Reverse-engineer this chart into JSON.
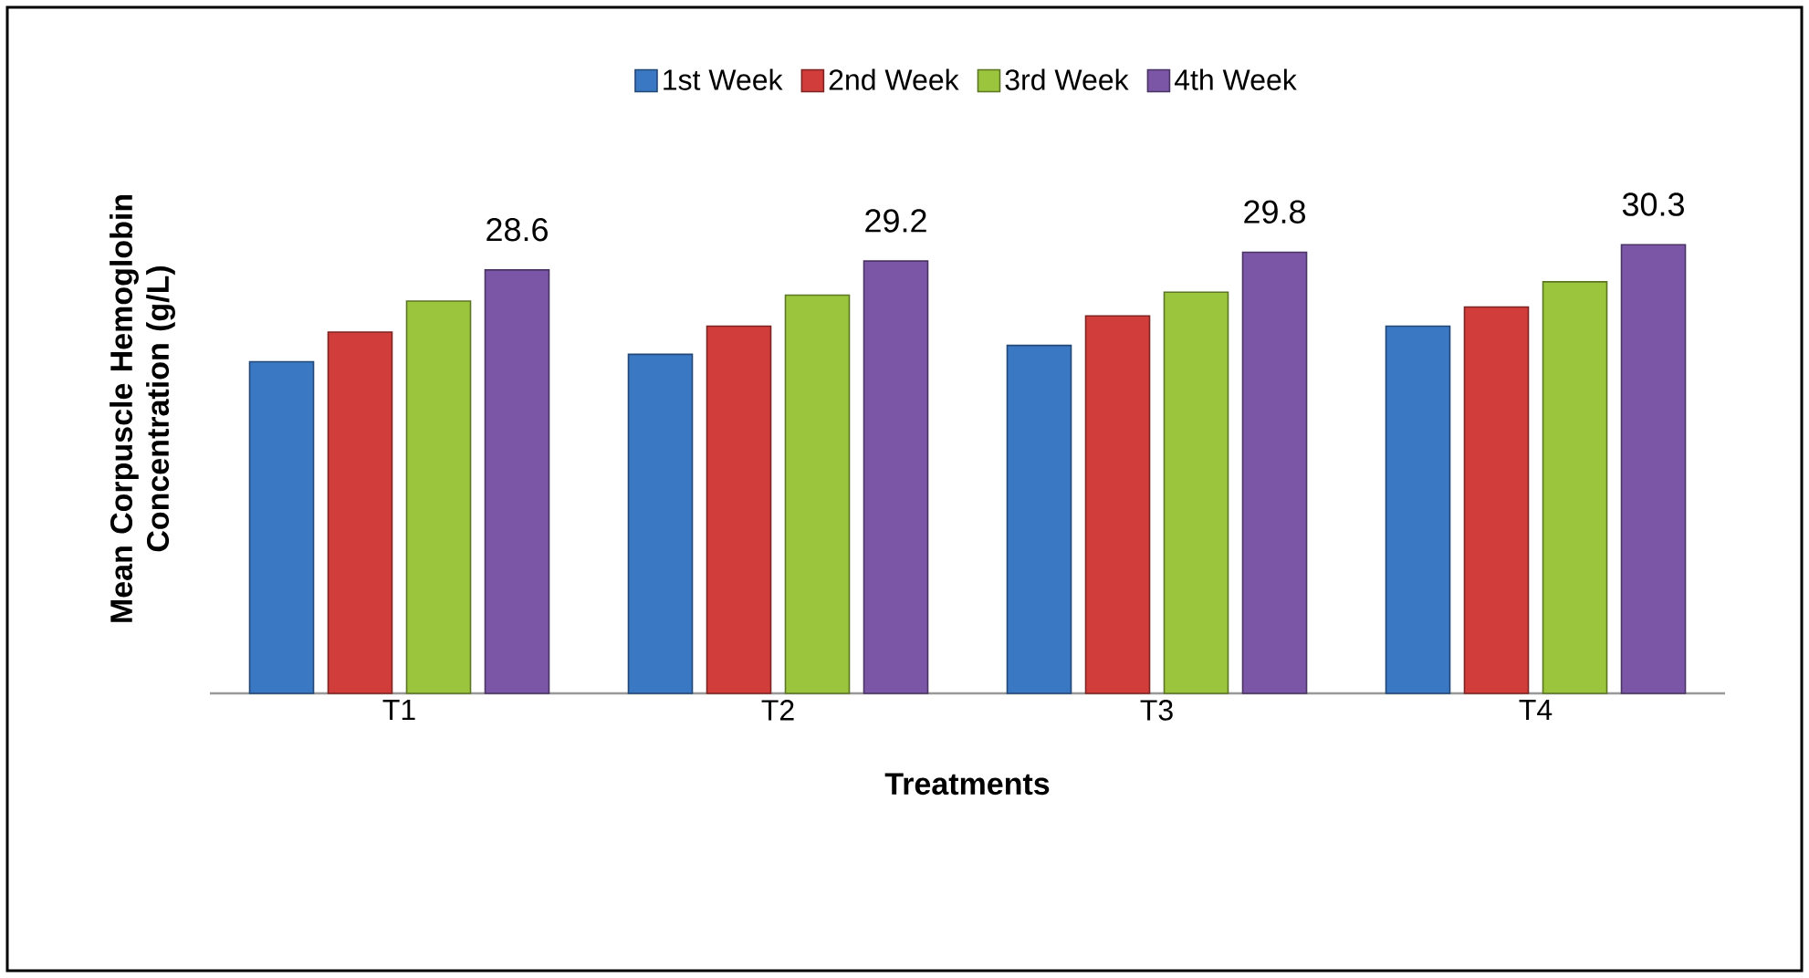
{
  "chart_data": {
    "type": "bar",
    "xlabel": "Treatments",
    "ylabel": "Mean Corpuscle Hemoglobin Concentration (g/L)",
    "categories": [
      "T1",
      "T2",
      "T3",
      "T4"
    ],
    "legend": "top",
    "series": [
      {
        "name": "1st Week",
        "color": "#3b78c4",
        "values": [
          22.4,
          22.9,
          23.5,
          24.8
        ]
      },
      {
        "name": "2nd Week",
        "color": "#d13d3b",
        "values": [
          24.4,
          24.8,
          25.5,
          26.1
        ]
      },
      {
        "name": "3rd Week",
        "color": "#9bc53d",
        "values": [
          26.5,
          26.9,
          27.1,
          27.8
        ]
      },
      {
        "name": "4th Week",
        "color": "#7b56a6",
        "values": [
          28.6,
          29.2,
          29.8,
          30.3
        ],
        "value_labels": [
          "28.6",
          "29.2",
          "29.8",
          "30.3"
        ]
      }
    ]
  }
}
